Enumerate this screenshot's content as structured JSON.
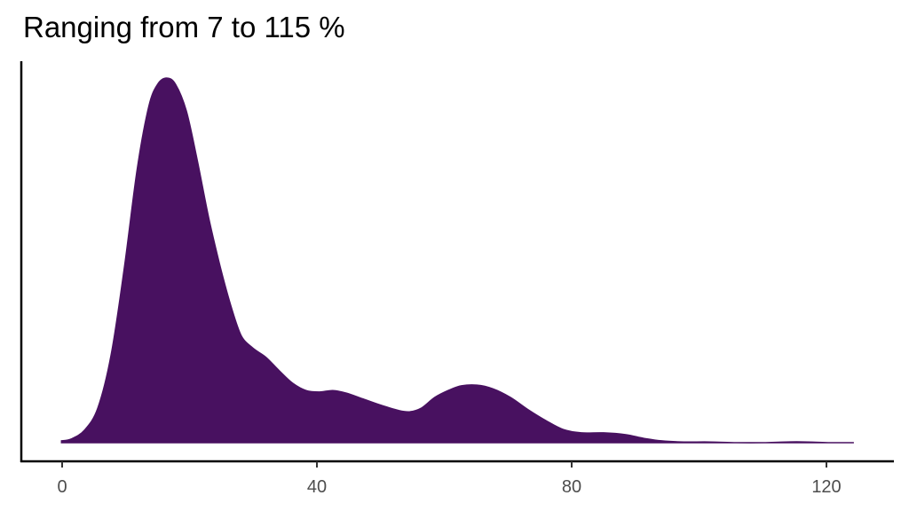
{
  "chart_data": {
    "type": "area",
    "subtype": "density",
    "title": "Ranging from 7 to 115 %",
    "xlabel": "",
    "ylabel": "",
    "xlim": [
      -0.2,
      130
    ],
    "x_ticks": [
      0,
      40,
      80,
      120
    ],
    "x_tick_labels": [
      "0",
      "40",
      "80",
      "120"
    ],
    "y_ticks": [],
    "grid": false,
    "legend": null,
    "fill_color": "#481160",
    "series": [
      {
        "name": "density",
        "note": "relative density (peak = 1.0), read from pixel heights",
        "x": [
          -0.1,
          1.4,
          3.5,
          5.6,
          7.7,
          9.8,
          11.8,
          13.6,
          15.0,
          16.4,
          17.8,
          19.5,
          21.2,
          23.0,
          24.8,
          26.5,
          28.1,
          29.9,
          32.0,
          34.1,
          36.2,
          38.3,
          40.4,
          42.5,
          44.6,
          47.4,
          50.2,
          52.9,
          54.6,
          56.4,
          58.5,
          60.6,
          62.7,
          65.1,
          67.6,
          70.4,
          73.2,
          75.9,
          78.7,
          81.5,
          85.0,
          88.5,
          91.3,
          94.1,
          97.6,
          101.7,
          105.9,
          110.1,
          113.6,
          117.1,
          120.6,
          124.3
        ],
        "y": [
          0.005,
          0.01,
          0.034,
          0.095,
          0.241,
          0.484,
          0.752,
          0.922,
          0.983,
          1.0,
          0.983,
          0.91,
          0.776,
          0.618,
          0.484,
          0.375,
          0.294,
          0.26,
          0.234,
          0.197,
          0.163,
          0.143,
          0.139,
          0.143,
          0.136,
          0.119,
          0.102,
          0.088,
          0.085,
          0.095,
          0.124,
          0.143,
          0.156,
          0.158,
          0.148,
          0.124,
          0.09,
          0.061,
          0.036,
          0.027,
          0.027,
          0.022,
          0.012,
          0.005,
          0.002,
          0.002,
          0.0,
          0.0,
          0.002,
          0.002,
          0.0,
          0.0
        ]
      }
    ]
  },
  "axes": {
    "x_tick_labels": [
      "0",
      "40",
      "80",
      "120"
    ]
  }
}
